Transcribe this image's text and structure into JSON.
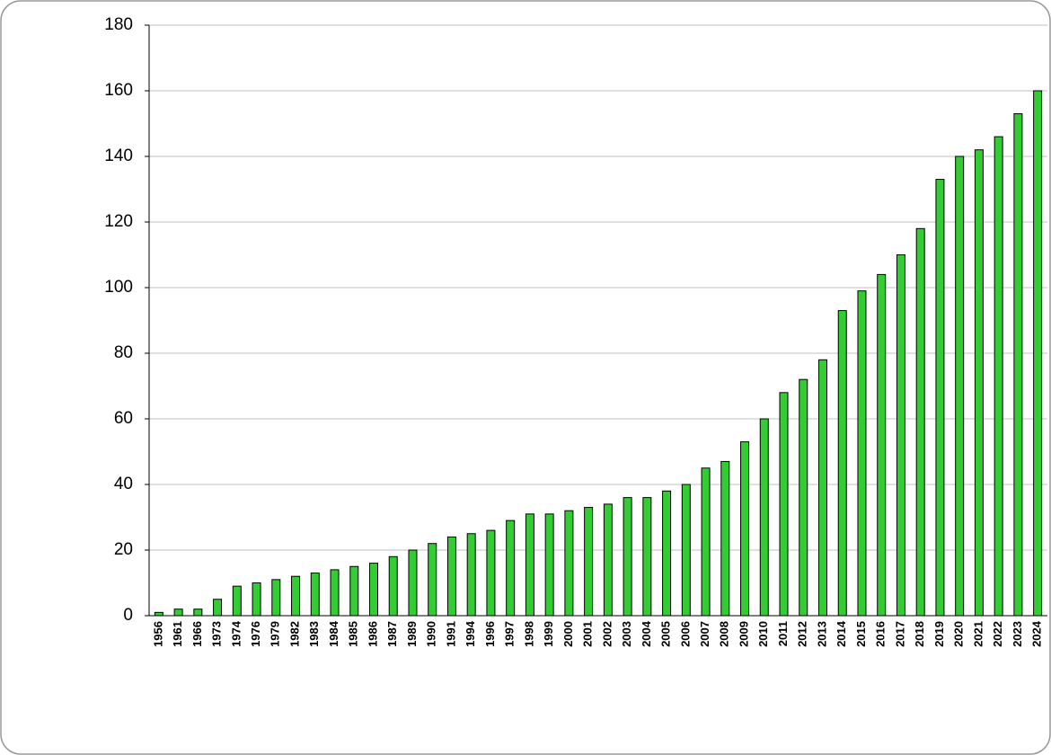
{
  "chart_data": {
    "type": "bar",
    "categories": [
      "1956",
      "1961",
      "1966",
      "1973",
      "1974",
      "1976",
      "1979",
      "1982",
      "1983",
      "1984",
      "1985",
      "1986",
      "1987",
      "1989",
      "1990",
      "1991",
      "1994",
      "1996",
      "1997",
      "1998",
      "1999",
      "2000",
      "2001",
      "2002",
      "2003",
      "2004",
      "2005",
      "2006",
      "2007",
      "2008",
      "2009",
      "2010",
      "2011",
      "2012",
      "2013",
      "2014",
      "2015",
      "2016",
      "2017",
      "2018",
      "2019",
      "2020",
      "2021",
      "2022",
      "2023",
      "2024"
    ],
    "values": [
      1,
      2,
      2,
      5,
      9,
      10,
      11,
      12,
      13,
      14,
      15,
      16,
      18,
      20,
      22,
      24,
      25,
      26,
      29,
      31,
      31,
      32,
      33,
      34,
      36,
      36,
      38,
      40,
      45,
      47,
      53,
      60,
      68,
      72,
      78,
      93,
      99,
      104,
      110,
      118,
      133,
      140,
      142,
      146,
      153,
      160
    ],
    "color": "#33cc33",
    "ylim": [
      0,
      180
    ],
    "yticks": [
      0,
      20,
      40,
      60,
      80,
      100,
      120,
      140,
      160,
      180
    ],
    "grid": true
  }
}
